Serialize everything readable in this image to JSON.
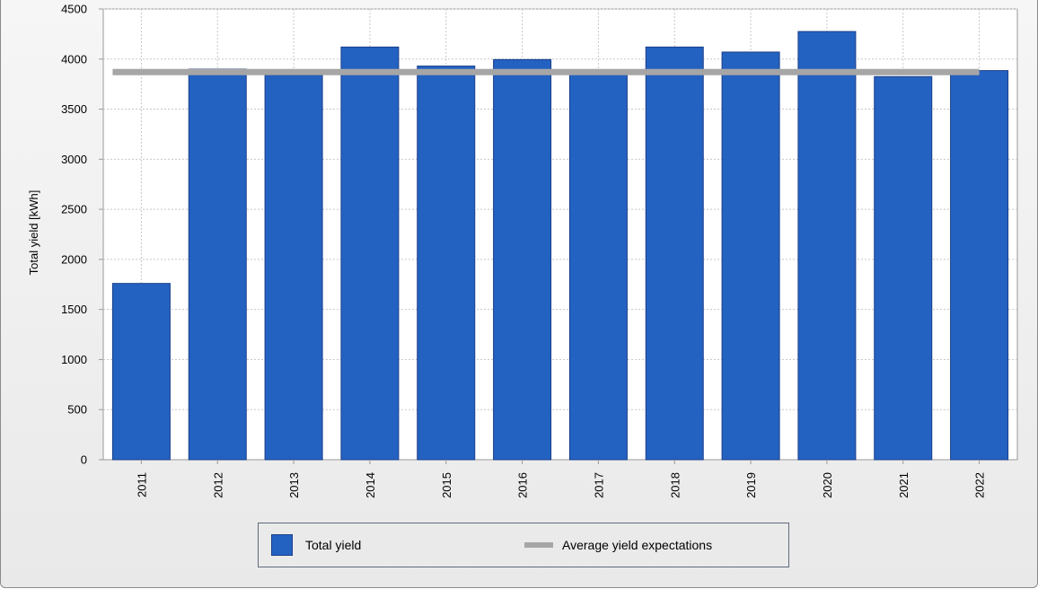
{
  "chart_data": {
    "type": "bar",
    "title": "",
    "xlabel": "",
    "ylabel": "Total yield [kWh]",
    "ylim": [
      0,
      4500
    ],
    "yticks": [
      0,
      500,
      1000,
      1500,
      2000,
      2500,
      3000,
      3500,
      4000,
      4500
    ],
    "categories": [
      "2011",
      "2012",
      "2013",
      "2014",
      "2015",
      "2016",
      "2017",
      "2018",
      "2019",
      "2020",
      "2021",
      "2022"
    ],
    "series": [
      {
        "name": "Total yield",
        "kind": "bar",
        "color": "#2462c1",
        "values": [
          1760,
          3900,
          3840,
          4120,
          3930,
          3995,
          3875,
          4120,
          4070,
          4275,
          3825,
          3885
        ]
      },
      {
        "name": "Average yield expectations",
        "kind": "line",
        "color": "#a6a6a6",
        "values": [
          3870,
          3870,
          3870,
          3870,
          3870,
          3870,
          3870,
          3870,
          3870,
          3870,
          3870,
          3870
        ]
      }
    ],
    "grid": true,
    "legend_position": "bottom"
  }
}
